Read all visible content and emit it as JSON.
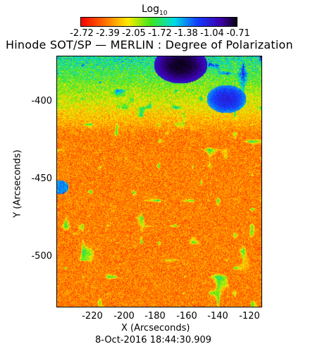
{
  "colorbar": {
    "title_base": "Log",
    "title_sub": "10",
    "ticks": [
      "-2.72",
      "-2.39",
      "-2.05",
      "-1.72",
      "-1.38",
      "-1.04",
      "-0.71"
    ],
    "min": -2.72,
    "max": -0.71
  },
  "title": "Hinode SOT/SP — MERLIN : Degree of Polarization",
  "axes": {
    "xlabel": "X (Arcseconds)",
    "ylabel": "Y (Arcseconds)",
    "xticks": [
      "-220",
      "-200",
      "-180",
      "-160",
      "-140",
      "-120"
    ],
    "yticks": [
      "-400",
      "-450",
      "-500"
    ],
    "xlim": [
      -242,
      -112
    ],
    "ylim": [
      -535,
      -372
    ]
  },
  "timestamp": "8-Oct-2016 18:44:30.909",
  "colormap": "rainbow"
}
